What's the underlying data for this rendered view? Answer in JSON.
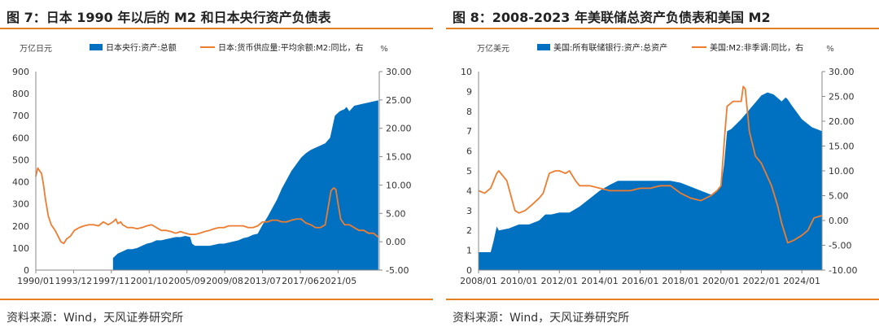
{
  "figures": [
    {
      "title": "图 7：日本 1990 年以后的 M2 和日本央行资产负债表",
      "source": "资料来源：Wind，天风证券研究所",
      "colors": {
        "accent": "#e67e22",
        "bar": "#0070c0",
        "line": "#ed7d31"
      },
      "chart_data": {
        "type": "area",
        "left_unit": "万亿日元",
        "right_unit": "%",
        "xlim": [
          1990.0,
          2025.6
        ],
        "x_ticks": [
          {
            "x": 1990.0,
            "label": "1990/01"
          },
          {
            "x": 1993.92,
            "label": "1993/12"
          },
          {
            "x": 1997.83,
            "label": "1997/11"
          },
          {
            "x": 2001.75,
            "label": "2001/10"
          },
          {
            "x": 2005.67,
            "label": "2005/09"
          },
          {
            "x": 2009.58,
            "label": "2009/08"
          },
          {
            "x": 2013.5,
            "label": "2013/07"
          },
          {
            "x": 2017.42,
            "label": "2017/06"
          },
          {
            "x": 2021.33,
            "label": "2021/05"
          }
        ],
        "y_left": {
          "lim": [
            0,
            900
          ],
          "ticks": [
            0,
            100,
            200,
            300,
            400,
            500,
            600,
            700,
            800,
            900
          ],
          "labels": [
            "0",
            "100",
            "200",
            "300",
            "400",
            "500",
            "600",
            "700",
            "800",
            "900"
          ]
        },
        "y_right": {
          "lim": [
            -5,
            30
          ],
          "ticks": [
            -5,
            0,
            5,
            10,
            15,
            20,
            25,
            30
          ],
          "labels": [
            "-5.00",
            "0.00",
            "5.00",
            "10.00",
            "15.00",
            "20.00",
            "25.00",
            "30.00"
          ]
        },
        "series": [
          {
            "name": "日本央行:资产:总额",
            "kind": "area",
            "axis": "left",
            "x": [
              1998.0,
              1998.5,
              1999.0,
              1999.5,
              2000.0,
              2000.5,
              2001.0,
              2001.5,
              2002.0,
              2002.5,
              2003.0,
              2003.5,
              2004.0,
              2004.5,
              2005.0,
              2005.5,
              2006.0,
              2006.2,
              2006.5,
              2007.0,
              2007.5,
              2008.0,
              2008.5,
              2009.0,
              2009.5,
              2010.0,
              2010.5,
              2011.0,
              2011.5,
              2012.0,
              2012.5,
              2013.0,
              2013.5,
              2014.0,
              2014.5,
              2015.0,
              2015.5,
              2016.0,
              2016.5,
              2017.0,
              2017.5,
              2018.0,
              2018.5,
              2019.0,
              2019.5,
              2020.0,
              2020.5,
              2021.0,
              2021.5,
              2022.0,
              2022.2,
              2022.5,
              2023.0,
              2023.5,
              2024.0,
              2024.5,
              2025.0,
              2025.5
            ],
            "y": [
              55,
              75,
              85,
              95,
              95,
              100,
              110,
              120,
              125,
              135,
              135,
              140,
              145,
              150,
              150,
              155,
              150,
              120,
              110,
              110,
              110,
              110,
              115,
              120,
              120,
              125,
              130,
              135,
              145,
              150,
              160,
              165,
              205,
              240,
              280,
              320,
              370,
              410,
              450,
              480,
              510,
              530,
              545,
              555,
              565,
              575,
              600,
              700,
              720,
              730,
              740,
              720,
              745,
              750,
              755,
              760,
              765,
              770
            ]
          },
          {
            "name": "日本:货币供应量:平均余额:M2:同比，右",
            "kind": "line",
            "axis": "right",
            "x": [
              1990.0,
              1990.2,
              1990.4,
              1990.6,
              1990.8,
              1991.0,
              1991.3,
              1991.6,
              1992.0,
              1992.3,
              1992.6,
              1992.9,
              1993.2,
              1993.6,
              1994.0,
              1994.5,
              1995.0,
              1995.5,
              1996.0,
              1996.5,
              1997.0,
              1997.5,
              1998.0,
              1998.3,
              1998.5,
              1998.8,
              1999.0,
              1999.5,
              2000.0,
              2000.5,
              2001.0,
              2001.5,
              2002.0,
              2002.5,
              2003.0,
              2003.5,
              2004.0,
              2004.5,
              2005.0,
              2005.5,
              2006.0,
              2006.5,
              2007.0,
              2007.5,
              2008.0,
              2008.5,
              2009.0,
              2009.5,
              2010.0,
              2010.5,
              2011.0,
              2011.5,
              2012.0,
              2012.5,
              2013.0,
              2013.5,
              2014.0,
              2014.5,
              2015.0,
              2015.5,
              2016.0,
              2016.5,
              2017.0,
              2017.5,
              2018.0,
              2018.5,
              2019.0,
              2019.5,
              2020.0,
              2020.3,
              2020.6,
              2020.9,
              2021.1,
              2021.3,
              2021.6,
              2022.0,
              2022.5,
              2023.0,
              2023.5,
              2024.0,
              2024.5,
              2025.0,
              2025.5
            ],
            "y": [
              11.5,
              13.0,
              12.5,
              12.0,
              10.0,
              7.5,
              4.5,
              3.0,
              2.0,
              1.0,
              0.0,
              -0.3,
              0.5,
              1.0,
              2.0,
              2.5,
              2.8,
              3.0,
              3.0,
              2.8,
              3.5,
              3.0,
              3.5,
              4.0,
              3.2,
              3.5,
              3.0,
              2.5,
              2.5,
              2.3,
              2.5,
              2.8,
              3.0,
              2.5,
              2.0,
              2.0,
              1.8,
              1.5,
              1.8,
              1.5,
              1.3,
              1.3,
              1.5,
              1.8,
              2.0,
              2.3,
              2.5,
              2.5,
              2.8,
              2.8,
              2.8,
              2.8,
              2.5,
              2.5,
              2.8,
              3.5,
              3.5,
              3.8,
              3.8,
              3.5,
              3.5,
              3.8,
              4.0,
              4.0,
              3.3,
              3.0,
              2.5,
              2.5,
              3.0,
              6.0,
              9.0,
              9.5,
              9.2,
              7.0,
              4.0,
              3.0,
              3.0,
              2.5,
              2.0,
              2.0,
              1.5,
              1.5,
              0.8
            ]
          }
        ]
      }
    },
    {
      "title": "图 8：2008-2023 年美联储总资产负债表和美国 M2",
      "source": "资料来源：Wind，天风证券研究所",
      "colors": {
        "accent": "#e67e22",
        "bar": "#0070c0",
        "line": "#ed7d31"
      },
      "chart_data": {
        "type": "area",
        "left_unit": "万亿美元",
        "right_unit": "%",
        "xlim": [
          2008.0,
          2025.0
        ],
        "x_ticks": [
          {
            "x": 2008.0,
            "label": "2008/01"
          },
          {
            "x": 2010.0,
            "label": "2010/01"
          },
          {
            "x": 2012.0,
            "label": "2012/01"
          },
          {
            "x": 2014.0,
            "label": "2014/01"
          },
          {
            "x": 2016.0,
            "label": "2016/01"
          },
          {
            "x": 2018.0,
            "label": "2018/01"
          },
          {
            "x": 2020.0,
            "label": "2020/01"
          },
          {
            "x": 2022.0,
            "label": "2022/01"
          },
          {
            "x": 2024.0,
            "label": "2024/01"
          }
        ],
        "y_left": {
          "lim": [
            0,
            10
          ],
          "ticks": [
            0,
            1,
            2,
            3,
            4,
            5,
            6,
            7,
            8,
            9,
            10
          ],
          "labels": [
            "0",
            "1",
            "2",
            "3",
            "4",
            "5",
            "6",
            "7",
            "8",
            "9",
            "10"
          ]
        },
        "y_right": {
          "lim": [
            -10,
            30
          ],
          "ticks": [
            -10,
            -5,
            0,
            5,
            10,
            15,
            20,
            25,
            30
          ],
          "labels": [
            "-10.00",
            "-5.00",
            "0.00",
            "5.00",
            "10.00",
            "15.00",
            "20.00",
            "25.00",
            "30.00"
          ]
        },
        "series": [
          {
            "name": "美国:所有联储银行:资产:总资产",
            "kind": "area",
            "axis": "left",
            "x": [
              2008.0,
              2008.6,
              2008.75,
              2008.9,
              2009.0,
              2009.5,
              2010.0,
              2010.5,
              2011.0,
              2011.3,
              2011.6,
              2012.0,
              2012.5,
              2013.0,
              2013.5,
              2014.0,
              2014.5,
              2014.9,
              2015.5,
              2016.0,
              2016.5,
              2017.0,
              2017.5,
              2018.0,
              2018.5,
              2019.0,
              2019.5,
              2019.8,
              2020.0,
              2020.15,
              2020.3,
              2020.5,
              2021.0,
              2021.5,
              2022.0,
              2022.3,
              2022.6,
              2023.0,
              2023.2,
              2023.3,
              2023.5,
              2024.0,
              2024.5,
              2025.0
            ],
            "y": [
              0.9,
              0.9,
              1.5,
              2.2,
              2.0,
              2.1,
              2.3,
              2.3,
              2.5,
              2.8,
              2.8,
              2.9,
              2.9,
              3.2,
              3.6,
              4.0,
              4.3,
              4.5,
              4.5,
              4.5,
              4.5,
              4.5,
              4.5,
              4.4,
              4.2,
              4.0,
              3.8,
              4.0,
              4.2,
              5.3,
              7.0,
              7.1,
              7.6,
              8.2,
              8.8,
              8.95,
              8.85,
              8.5,
              8.7,
              8.6,
              8.3,
              7.6,
              7.2,
              7.0
            ]
          },
          {
            "name": "美国:M2:非季调:同比，右",
            "kind": "line",
            "axis": "right",
            "x": [
              2008.0,
              2008.3,
              2008.6,
              2008.9,
              2009.0,
              2009.2,
              2009.4,
              2009.6,
              2009.8,
              2010.0,
              2010.3,
              2010.6,
              2011.0,
              2011.2,
              2011.5,
              2011.8,
              2012.0,
              2012.3,
              2012.5,
              2012.8,
              2013.0,
              2013.5,
              2014.0,
              2014.5,
              2015.0,
              2015.5,
              2016.0,
              2016.5,
              2017.0,
              2017.5,
              2018.0,
              2018.5,
              2019.0,
              2019.5,
              2019.8,
              2020.0,
              2020.2,
              2020.3,
              2020.6,
              2021.0,
              2021.1,
              2021.2,
              2021.4,
              2021.7,
              2022.0,
              2022.5,
              2022.8,
              2023.0,
              2023.3,
              2023.6,
              2024.0,
              2024.3,
              2024.6,
              2025.0
            ],
            "y": [
              6.0,
              5.5,
              6.5,
              9.5,
              10.0,
              9.0,
              8.0,
              5.0,
              2.0,
              1.5,
              2.0,
              3.0,
              4.5,
              5.5,
              9.5,
              10.0,
              10.0,
              9.5,
              10.0,
              8.0,
              7.0,
              7.0,
              6.5,
              6.0,
              6.0,
              6.0,
              6.5,
              6.5,
              7.0,
              7.0,
              5.5,
              4.5,
              4.0,
              5.0,
              6.0,
              7.0,
              18.0,
              23.0,
              24.0,
              24.0,
              27.0,
              26.5,
              18.0,
              13.0,
              11.5,
              7.0,
              3.0,
              -0.5,
              -4.5,
              -4.0,
              -3.0,
              -2.0,
              0.5,
              1.0
            ]
          }
        ]
      }
    }
  ]
}
